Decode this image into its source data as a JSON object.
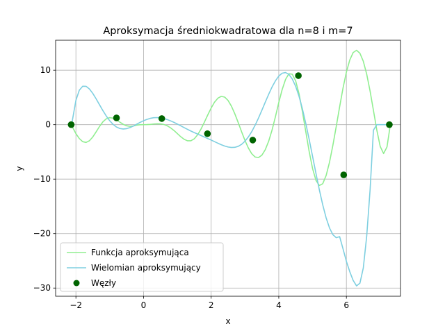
{
  "chart_data": {
    "type": "line",
    "title": "Aproksymacja średniokwadratowa dla n=8 i m=7",
    "xlabel": "x",
    "ylabel": "y",
    "xlim": [
      -2.6,
      7.6
    ],
    "ylim": [
      -31.5,
      15.5
    ],
    "xticks": [
      -2,
      0,
      2,
      4,
      6
    ],
    "yticks": [
      -30,
      -20,
      -10,
      0,
      10
    ],
    "xtick_labels": [
      "−2",
      "0",
      "2",
      "4",
      "6"
    ],
    "ytick_labels": [
      "−30",
      "−20",
      "−10",
      "0",
      "10"
    ],
    "grid": true,
    "legend_position": "lower-left",
    "series": [
      {
        "name": "Funkcja aproksymująca",
        "kind": "line",
        "color": "#90ee90",
        "x": [
          -2.14,
          -2.0,
          -1.9,
          -1.8,
          -1.7,
          -1.6,
          -1.5,
          -1.4,
          -1.3,
          -1.2,
          -1.1,
          -1.0,
          -0.9,
          -0.8,
          -0.7,
          -0.6,
          -0.5,
          -0.4,
          -0.3,
          -0.2,
          -0.1,
          0.0,
          0.1,
          0.2,
          0.3,
          0.4,
          0.5,
          0.6,
          0.7,
          0.8,
          0.9,
          1.0,
          1.1,
          1.2,
          1.3,
          1.4,
          1.5,
          1.6,
          1.7,
          1.8,
          1.9,
          2.0,
          2.1,
          2.2,
          2.3,
          2.4,
          2.5,
          2.6,
          2.7,
          2.8,
          2.9,
          3.0,
          3.1,
          3.2,
          3.3,
          3.4,
          3.5,
          3.6,
          3.7,
          3.8,
          3.9,
          4.0,
          4.1,
          4.2,
          4.3,
          4.4,
          4.5,
          4.6,
          4.7,
          4.8,
          4.9,
          5.0,
          5.1,
          5.2,
          5.3,
          5.4,
          5.5,
          5.6,
          5.7,
          5.8,
          5.9,
          6.0,
          6.1,
          6.2,
          6.3,
          6.4,
          6.5,
          6.6,
          6.7,
          6.8,
          6.9,
          7.0,
          7.1,
          7.2,
          7.3
        ],
        "y": [
          0.0,
          -1.64,
          -2.55,
          -3.12,
          -3.26,
          -2.95,
          -2.25,
          -1.3,
          -0.31,
          0.53,
          1.08,
          1.29,
          1.19,
          0.88,
          0.46,
          0.06,
          -0.21,
          -0.31,
          -0.25,
          -0.08,
          -0.01,
          0.0,
          0.01,
          0.05,
          0.12,
          0.16,
          0.14,
          0.04,
          -0.2,
          -0.58,
          -1.07,
          -1.64,
          -2.21,
          -2.68,
          -2.96,
          -2.96,
          -2.6,
          -1.86,
          -0.8,
          0.46,
          1.79,
          3.06,
          4.13,
          4.87,
          5.2,
          5.06,
          4.44,
          3.39,
          1.99,
          0.38,
          -1.3,
          -2.9,
          -4.28,
          -5.33,
          -5.94,
          -6.04,
          -5.6,
          -4.6,
          -3.06,
          -1.01,
          1.44,
          4.07,
          6.44,
          8.3,
          9.35,
          9.26,
          8.02,
          5.65,
          2.36,
          -1.33,
          -4.97,
          -8.07,
          -10.23,
          -11.17,
          -10.84,
          -9.34,
          -6.91,
          -3.79,
          -0.32,
          3.28,
          6.72,
          9.66,
          11.88,
          13.24,
          13.65,
          13.11,
          11.64,
          9.28,
          6.17,
          2.6,
          -1.0,
          -4.0,
          -5.3,
          -4.1,
          0.0
        ]
      },
      {
        "name": "Wielomian aproksymujący",
        "kind": "line",
        "color": "#7ecfe0",
        "x": [
          -2.14,
          -2.0,
          -1.9,
          -1.8,
          -1.7,
          -1.6,
          -1.5,
          -1.4,
          -1.3,
          -1.2,
          -1.1,
          -1.0,
          -0.9,
          -0.8,
          -0.7,
          -0.6,
          -0.5,
          -0.4,
          -0.3,
          -0.2,
          -0.1,
          0.0,
          0.1,
          0.2,
          0.3,
          0.4,
          0.5,
          0.6,
          0.7,
          0.8,
          0.9,
          1.0,
          1.1,
          1.2,
          1.3,
          1.4,
          1.5,
          1.6,
          1.7,
          1.8,
          1.9,
          2.0,
          2.1,
          2.2,
          2.3,
          2.4,
          2.5,
          2.6,
          2.7,
          2.8,
          2.9,
          3.0,
          3.1,
          3.2,
          3.3,
          3.4,
          3.5,
          3.6,
          3.7,
          3.8,
          3.9,
          4.0,
          4.1,
          4.2,
          4.3,
          4.4,
          4.5,
          4.6,
          4.7,
          4.8,
          4.9,
          5.0,
          5.1,
          5.2,
          5.3,
          5.4,
          5.5,
          5.6,
          5.7,
          5.8,
          5.9,
          6.0,
          6.1,
          6.2,
          6.3,
          6.4,
          6.5,
          6.6,
          6.7,
          6.8,
          6.9,
          7.0,
          7.1,
          7.2,
          7.3
        ],
        "y": [
          -0.46,
          4.47,
          6.32,
          7.05,
          7.04,
          6.55,
          5.73,
          4.72,
          3.63,
          2.56,
          1.57,
          0.72,
          0.05,
          -0.43,
          -0.71,
          -0.8,
          -0.73,
          -0.53,
          -0.25,
          0.09,
          0.42,
          0.72,
          0.97,
          1.16,
          1.27,
          1.3,
          1.25,
          1.13,
          0.94,
          0.7,
          0.42,
          0.11,
          -0.21,
          -0.54,
          -0.86,
          -1.17,
          -1.46,
          -1.73,
          -2.0,
          -2.27,
          -2.55,
          -2.83,
          -3.12,
          -3.41,
          -3.68,
          -3.92,
          -4.1,
          -4.19,
          -4.16,
          -3.98,
          -3.61,
          -3.04,
          -2.26,
          -1.28,
          -0.11,
          1.21,
          2.64,
          4.12,
          5.56,
          6.9,
          8.04,
          8.92,
          9.45,
          9.57,
          9.22,
          8.38,
          7.03,
          5.18,
          2.88,
          0.2,
          -2.74,
          -5.84,
          -8.96,
          -11.97,
          -14.73,
          -17.1,
          -18.96,
          -20.2,
          -20.75,
          -20.56,
          -22.8,
          -25.1,
          -27.0,
          -28.6,
          -29.6,
          -29.1,
          -26.3,
          -20.5,
          -12.0,
          -1.0,
          0.0,
          0.0,
          0.0,
          0.0,
          0.0
        ]
      },
      {
        "name": "Węzły",
        "kind": "scatter",
        "color": "#006400",
        "x": [
          -2.14,
          -0.8,
          0.54,
          1.89,
          3.23,
          4.58,
          5.92,
          7.27
        ],
        "y": [
          0.0,
          1.24,
          1.12,
          -1.66,
          -2.83,
          9.0,
          -9.22,
          0.0
        ]
      }
    ]
  }
}
